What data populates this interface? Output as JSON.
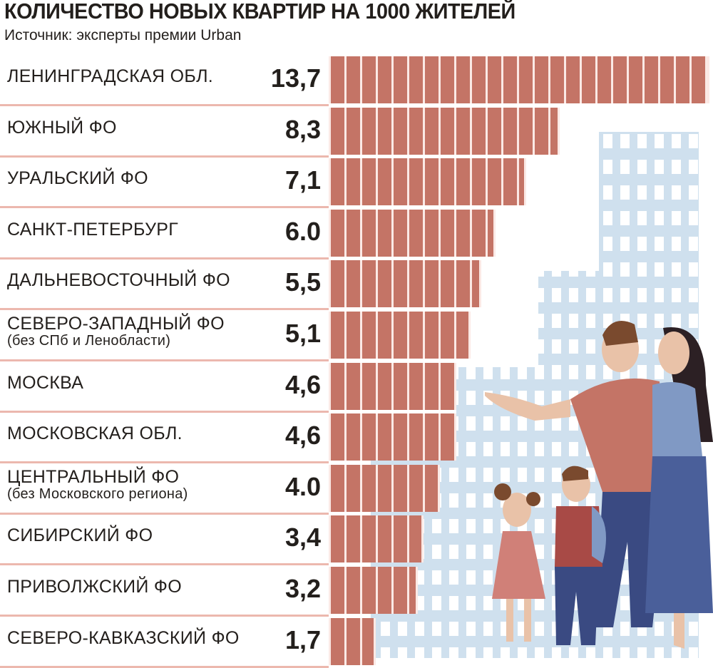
{
  "chart_data": {
    "type": "bar",
    "orientation": "horizontal",
    "title": "КОЛИЧЕСТВО НОВЫХ КВАРТИР НА 1000 ЖИТЕЛЕЙ",
    "subtitle": "Источник: эксперты премии Urban",
    "xlim": [
      0,
      13.7
    ],
    "categories": [
      {
        "label": "ЛЕНИНГРАДСКАЯ ОБЛ.",
        "sub": "",
        "value_label": "13,7"
      },
      {
        "label": "ЮЖНЫЙ ФО",
        "sub": "",
        "value_label": "8,3"
      },
      {
        "label": "УРАЛЬСКИЙ ФО",
        "sub": "",
        "value_label": "7,1"
      },
      {
        "label": "САНКТ-ПЕТЕРБУРГ",
        "sub": "",
        "value_label": "6.0"
      },
      {
        "label": "ДАЛЬНЕВОСТОЧНЫЙ ФО",
        "sub": "",
        "value_label": "5,5"
      },
      {
        "label": "СЕВЕРО-ЗАПАДНЫЙ ФО",
        "sub": "(без СПб и Ленобласти)",
        "value_label": "5,1"
      },
      {
        "label": "МОСКВА",
        "sub": "",
        "value_label": "4,6"
      },
      {
        "label": "МОСКОВСКАЯ ОБЛ.",
        "sub": "",
        "value_label": "4,6"
      },
      {
        "label": "ЦЕНТРАЛЬНЫЙ ФО",
        "sub": "(без Московского региона)",
        "value_label": "4.0"
      },
      {
        "label": "СИБИРСКИЙ ФО",
        "sub": "",
        "value_label": "3,4"
      },
      {
        "label": "ПРИВОЛЖСКИЙ ФО",
        "sub": "",
        "value_label": "3,2"
      },
      {
        "label": "СЕВЕРО-КАВКАЗСКИЙ ФО",
        "sub": "",
        "value_label": "1,7"
      }
    ],
    "values": [
      13.7,
      8.3,
      7.1,
      6.0,
      5.5,
      5.1,
      4.6,
      4.6,
      4.0,
      3.4,
      3.2,
      1.7
    ],
    "colors": {
      "bar": "#c47466",
      "separator": "#ecb8ae",
      "buildings": "#cfe0ee"
    }
  }
}
